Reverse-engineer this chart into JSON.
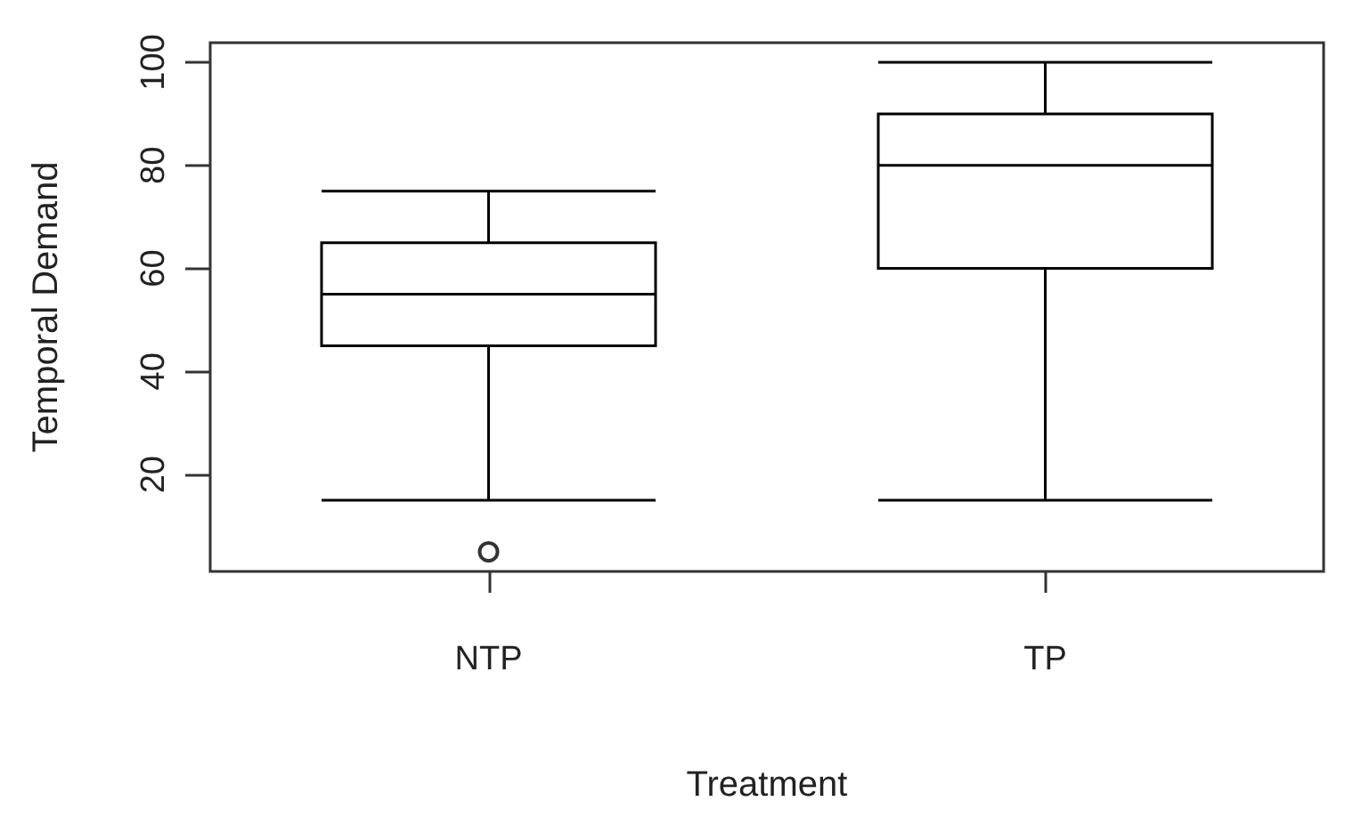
{
  "chart_data": {
    "type": "box",
    "xlabel": "Treatment",
    "ylabel": "Temporal Demand",
    "categories": [
      "NTP",
      "TP"
    ],
    "ylim": [
      1.2,
      103.8
    ],
    "yticks": [
      20,
      40,
      60,
      80,
      100
    ],
    "series": [
      {
        "color": "#000000",
        "boxes": [
          {
            "low": 15,
            "q1": 45,
            "median": 55,
            "q3": 65,
            "high": 75,
            "outliers": [
              5
            ]
          },
          {
            "low": 15,
            "q1": 60,
            "median": 80,
            "q3": 90,
            "high": 100
          }
        ]
      }
    ]
  }
}
